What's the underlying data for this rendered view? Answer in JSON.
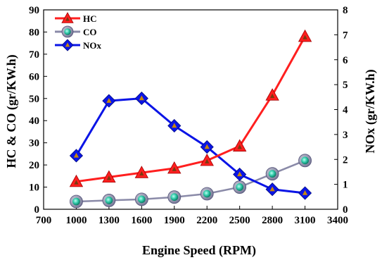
{
  "chart_data": {
    "type": "line",
    "x": [
      1000,
      1300,
      1600,
      1900,
      2200,
      2500,
      2800,
      3100
    ],
    "xlabel": "Engine Speed (RPM)",
    "xlim": [
      700,
      3400
    ],
    "xticks": [
      700,
      1000,
      1300,
      1600,
      1900,
      2200,
      2500,
      2800,
      3100,
      3400
    ],
    "ylabel": "HC & CO (gr/KW.h)",
    "ylim": [
      0,
      90
    ],
    "yticks": [
      0,
      10,
      20,
      30,
      40,
      50,
      60,
      70,
      80,
      90
    ],
    "y2label": "NOx (gr/KW.h)",
    "y2lim": [
      0,
      8
    ],
    "y2ticks": [
      0,
      1,
      2,
      3,
      4,
      5,
      6,
      7,
      8
    ],
    "legend_position": "top-left",
    "grid": false,
    "series": [
      {
        "name": "HC",
        "axis": "left",
        "color": "#ff1f1f",
        "marker": "triangle",
        "values": [
          12.5,
          14.5,
          16.5,
          18.5,
          22,
          28.5,
          51.5,
          78
        ]
      },
      {
        "name": "CO",
        "axis": "left",
        "color": "#8a8aa8",
        "marker": "circle",
        "values": [
          3.5,
          4,
          4.5,
          5.5,
          7,
          10,
          16,
          22
        ]
      },
      {
        "name": "NOx",
        "axis": "right",
        "color": "#0a14e6",
        "marker": "diamond",
        "values": [
          2.15,
          4.35,
          4.45,
          3.35,
          2.5,
          1.4,
          0.8,
          0.65
        ]
      }
    ]
  }
}
